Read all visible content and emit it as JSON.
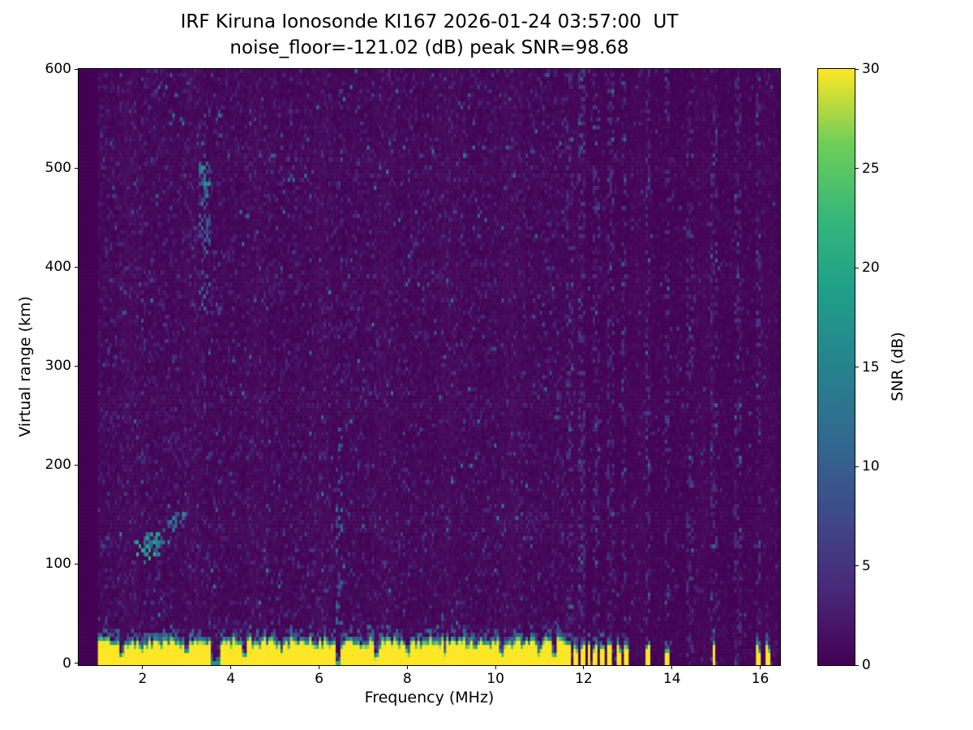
{
  "title": {
    "line1": "IRF Kiruna Ionosonde KI167 2026-01-24 03:57:00  UT",
    "line2": "noise_floor=-121.02 (dB) peak SNR=98.68"
  },
  "axes": {
    "xlabel": "Frequency (MHz)",
    "ylabel": "Virtual range (km)",
    "x_ticks": [
      2,
      4,
      6,
      8,
      10,
      12,
      14,
      16
    ],
    "y_ticks": [
      0,
      100,
      200,
      300,
      400,
      500,
      600
    ],
    "xlim": [
      0.55,
      16.45
    ],
    "ylim": [
      -2,
      600
    ]
  },
  "colorbar": {
    "label": "SNR (dB)",
    "ticks": [
      0,
      5,
      10,
      15,
      20,
      25,
      30
    ],
    "vmin": 0,
    "vmax": 30,
    "colormap": "viridis"
  },
  "chart_data": {
    "type": "heatmap",
    "title": "IRF Kiruna Ionosonde KI167 2026-01-24 03:57:00  UT",
    "subtitle": "noise_floor=-121.02 (dB) peak SNR=98.68",
    "xlabel": "Frequency (MHz)",
    "ylabel": "Virtual range (km)",
    "zlabel": "SNR (dB)",
    "x_range": [
      0.55,
      16.45
    ],
    "y_range": [
      -2,
      600
    ],
    "z_range": [
      0,
      30
    ],
    "noise_floor_db": -121.02,
    "peak_snr_db": 98.68,
    "colormap": "viridis",
    "features": {
      "ground_clutter": {
        "freq_start": 0.97,
        "freq_end": 11.62,
        "top_km_min": 20,
        "top_km_max": 30,
        "snr_db": 30,
        "notches": [
          {
            "f": 1.55,
            "w": 0.05,
            "depth": 0.5
          },
          {
            "f": 2.0,
            "w": 0.04,
            "depth": 0.4
          },
          {
            "f": 3.0,
            "w": 0.05,
            "depth": 0.45
          },
          {
            "f": 3.67,
            "w": 0.1,
            "depth": 0.9
          },
          {
            "f": 4.3,
            "w": 0.05,
            "depth": 0.55
          },
          {
            "f": 5.15,
            "w": 0.04,
            "depth": 0.35
          },
          {
            "f": 6.42,
            "w": 0.07,
            "depth": 0.85
          },
          {
            "f": 7.3,
            "w": 0.06,
            "depth": 0.6
          },
          {
            "f": 8.0,
            "w": 0.04,
            "depth": 0.35
          },
          {
            "f": 8.85,
            "w": 0.05,
            "depth": 0.5
          },
          {
            "f": 9.55,
            "w": 0.04,
            "depth": 0.35
          },
          {
            "f": 10.15,
            "w": 0.05,
            "depth": 0.5
          },
          {
            "f": 11.0,
            "w": 0.04,
            "depth": 0.4
          },
          {
            "f": 11.35,
            "w": 0.05,
            "depth": 0.5
          }
        ]
      },
      "clutter_stripes_mhz": [
        11.68,
        11.82,
        11.97,
        12.12,
        12.27,
        12.44,
        12.6,
        12.78,
        12.97,
        13.45,
        13.9,
        14.95,
        15.95,
        16.2
      ],
      "rfi_columns_mhz": [
        11.7,
        11.97,
        12.27,
        12.6,
        12.9,
        13.45,
        13.9,
        14.4,
        14.95,
        15.5,
        15.95
      ],
      "e_region_echo": {
        "freq_mhz": [
          1.7,
          2.8
        ],
        "center": [
          2.2,
          118
        ],
        "range_km": [
          100,
          140
        ],
        "snr_db": [
          8,
          22
        ]
      },
      "e_region_streak": {
        "freq_mhz": [
          2.25,
          3.0
        ],
        "range_start_km": 120,
        "range_end_km": 155,
        "half_width_km": 7,
        "snr_db": [
          7,
          19
        ]
      },
      "f_region_echo": {
        "freq_mhz": [
          3.28,
          3.52
        ],
        "range_km": [
          352,
          508
        ],
        "snr_db": [
          5,
          18
        ]
      },
      "mid_streak": {
        "freq_mhz": [
          6.38,
          6.52
        ],
        "range_km": [
          40,
          240
        ],
        "snr_db": [
          4,
          12
        ]
      }
    },
    "render": {
      "seed": 20260124,
      "nx": 292,
      "ny": 148,
      "viridis_stops": [
        "#440154",
        "#482878",
        "#3e4989",
        "#31688e",
        "#26828e",
        "#1f9e89",
        "#35b779",
        "#6ece58",
        "#fde725"
      ]
    }
  }
}
